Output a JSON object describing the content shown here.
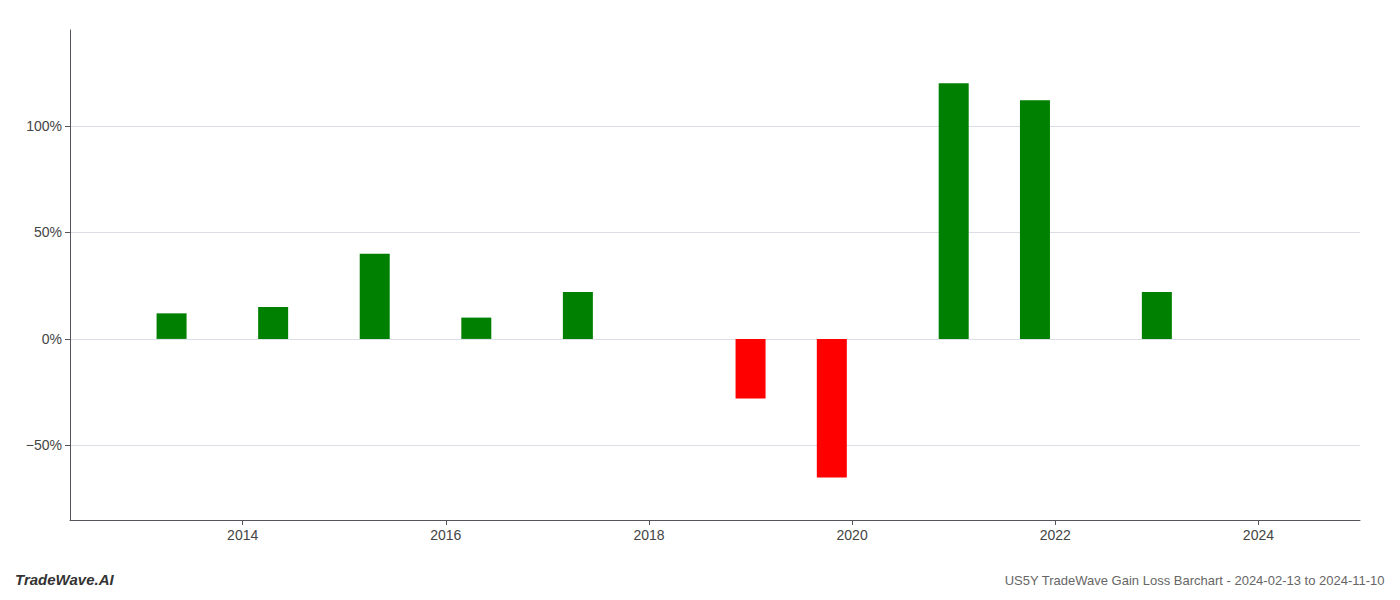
{
  "chart_data": {
    "type": "bar",
    "title": "US5Y TradeWave Gain Loss Barchart - 2024-02-13 to 2024-11-10",
    "annotations": [
      "TradeWave.AI"
    ],
    "x": [
      2013.3,
      2014.3,
      2015.3,
      2016.3,
      2017.3,
      2019.0,
      2019.8,
      2021.0,
      2021.8,
      2023.0
    ],
    "values": [
      12,
      15,
      40,
      10,
      22,
      -28,
      -65,
      120,
      112,
      22
    ],
    "colors": [
      "#008000",
      "#008000",
      "#008000",
      "#008000",
      "#008000",
      "#ff0000",
      "#ff0000",
      "#008000",
      "#008000",
      "#008000"
    ],
    "xlim": [
      2012.3,
      2025.0
    ],
    "xticks": [
      2014,
      2016,
      2018,
      2020,
      2022,
      2024
    ],
    "ylim": [
      -85,
      145
    ],
    "yticks": [
      {
        "value": -50,
        "label": "−50%"
      },
      {
        "value": 0,
        "label": "0%"
      },
      {
        "value": 50,
        "label": "50%"
      },
      {
        "value": 100,
        "label": "100%"
      }
    ],
    "grid": true
  }
}
